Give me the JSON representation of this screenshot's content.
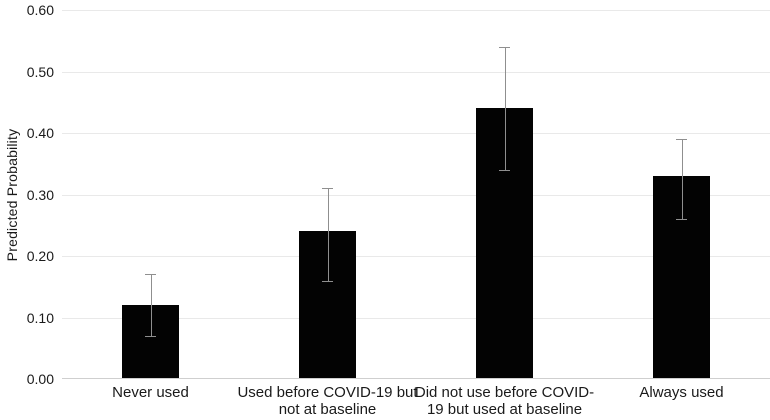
{
  "chart_data": {
    "type": "bar",
    "title": "",
    "xlabel": "",
    "ylabel": "Predicted Probability",
    "ylim": [
      0,
      0.6
    ],
    "grid": true,
    "legend": "none",
    "yticks": [
      {
        "value": 0.0,
        "label": "0.00"
      },
      {
        "value": 0.1,
        "label": "0.10"
      },
      {
        "value": 0.2,
        "label": "0.20"
      },
      {
        "value": 0.3,
        "label": "0.30"
      },
      {
        "value": 0.4,
        "label": "0.40"
      },
      {
        "value": 0.5,
        "label": "0.50"
      },
      {
        "value": 0.6,
        "label": "0.60"
      }
    ],
    "categories": [
      "Never used",
      "Used before COVID-19 but\nnot at baseline",
      "Did not use before COVID-\n19 but used at baseline",
      "Always used"
    ],
    "values": [
      0.12,
      0.24,
      0.44,
      0.33
    ],
    "error_low": [
      0.07,
      0.16,
      0.34,
      0.26
    ],
    "error_high": [
      0.17,
      0.31,
      0.54,
      0.39
    ],
    "colors": {
      "bar": "#030303",
      "error_bar": "#8f8f8f",
      "gridline": "#e9e9e9",
      "axis_line": "#cfcfcf",
      "text": "#1a1a1a"
    }
  }
}
